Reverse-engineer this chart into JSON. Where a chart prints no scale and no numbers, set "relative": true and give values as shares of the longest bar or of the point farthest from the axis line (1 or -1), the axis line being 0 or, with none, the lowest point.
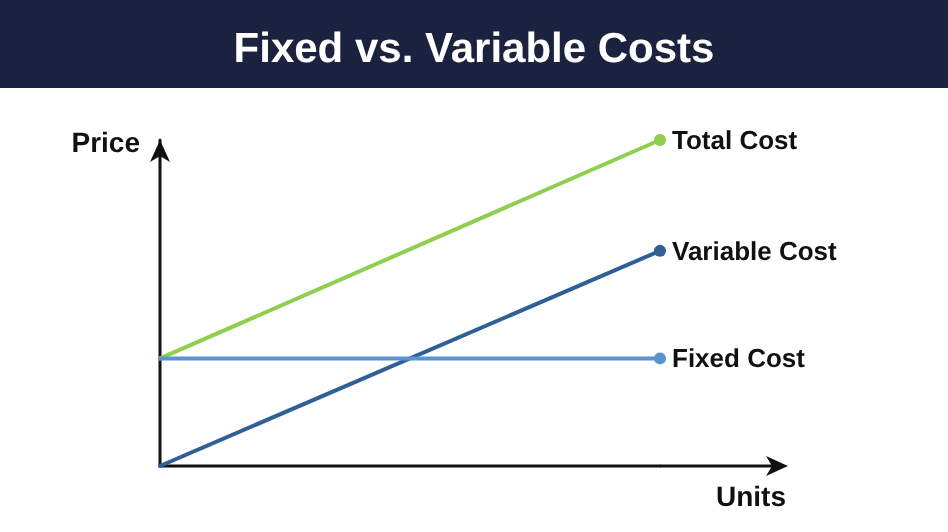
{
  "chart_data": {
    "type": "line",
    "title": "Fixed vs. Variable Costs",
    "xlabel": "Units",
    "ylabel": "Price",
    "relative": true,
    "categories": [
      null,
      null
    ],
    "series": [
      {
        "name": "Total Cost",
        "color": "#8fce4e",
        "values": [
          0.33,
          1
        ]
      },
      {
        "name": "Variable Cost",
        "color": "#2f5f96",
        "values": [
          0,
          0.66
        ]
      },
      {
        "name": "Fixed Cost",
        "color": "#5b92cf",
        "values": [
          0.33,
          0.33
        ]
      }
    ],
    "legend": false,
    "grid": false,
    "marker": "circle",
    "line_style": "solid"
  }
}
